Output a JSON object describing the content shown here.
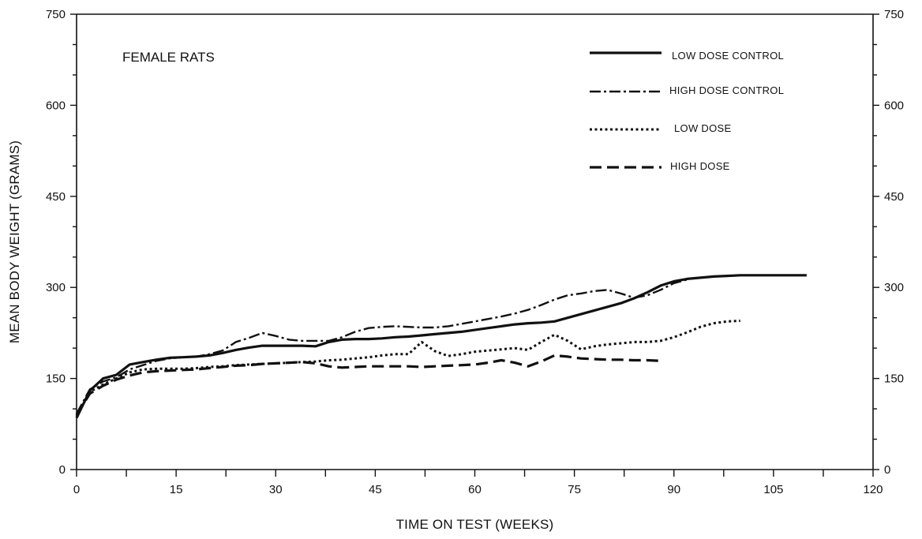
{
  "chart_data": {
    "type": "line",
    "title": "FEMALE RATS",
    "xlabel": "TIME ON TEST (WEEKS)",
    "ylabel": "MEAN BODY WEIGHT (GRAMS)",
    "xlim": [
      0,
      120
    ],
    "ylim": [
      0,
      750
    ],
    "x_ticks": [
      0,
      15,
      30,
      45,
      60,
      75,
      90,
      105,
      120
    ],
    "y_ticks": [
      0,
      150,
      300,
      450,
      600,
      750
    ],
    "grid": false,
    "legend_position": "top-right",
    "series": [
      {
        "name": "LOW DOSE CONTROL",
        "style": "solid",
        "x": [
          0,
          2,
          4,
          6,
          8,
          10,
          12,
          14,
          16,
          18,
          20,
          22,
          24,
          26,
          28,
          30,
          32,
          34,
          36,
          38,
          40,
          42,
          44,
          46,
          48,
          50,
          52,
          54,
          56,
          58,
          60,
          62,
          64,
          66,
          68,
          70,
          72,
          74,
          76,
          78,
          80,
          82,
          84,
          86,
          88,
          90,
          92,
          94,
          96,
          98,
          100,
          102,
          104,
          106,
          108,
          110
        ],
        "y": [
          85,
          130,
          150,
          156,
          173,
          177,
          181,
          184,
          185,
          186,
          188,
          192,
          197,
          201,
          204,
          204,
          204,
          204,
          203,
          210,
          214,
          215,
          215,
          216,
          218,
          219,
          221,
          223,
          225,
          227,
          230,
          233,
          236,
          239,
          241,
          242,
          244,
          250,
          256,
          262,
          268,
          274,
          282,
          292,
          303,
          310,
          314,
          316,
          318,
          319,
          320,
          320,
          320,
          320,
          320,
          320
        ]
      },
      {
        "name": "HIGH DOSE CONTROL",
        "style": "dash-dot",
        "x": [
          0,
          2,
          4,
          6,
          8,
          10,
          12,
          14,
          16,
          18,
          20,
          22,
          24,
          26,
          28,
          30,
          32,
          34,
          36,
          38,
          40,
          42,
          44,
          46,
          48,
          50,
          52,
          54,
          56,
          58,
          60,
          62,
          64,
          66,
          68,
          70,
          72,
          74,
          76,
          78,
          80,
          82,
          84,
          86,
          88,
          90,
          92
        ],
        "y": [
          92,
          132,
          145,
          152,
          165,
          172,
          179,
          183,
          185,
          186,
          190,
          196,
          210,
          217,
          225,
          220,
          214,
          212,
          212,
          212,
          218,
          227,
          233,
          235,
          236,
          235,
          234,
          234,
          236,
          240,
          244,
          248,
          252,
          257,
          263,
          271,
          280,
          287,
          290,
          294,
          296,
          290,
          283,
          287,
          296,
          307,
          313
        ]
      },
      {
        "name": "LOW DOSE",
        "style": "dotted",
        "x": [
          0,
          2,
          4,
          6,
          8,
          10,
          12,
          14,
          16,
          18,
          20,
          22,
          24,
          26,
          28,
          30,
          32,
          34,
          36,
          38,
          40,
          42,
          44,
          46,
          48,
          50,
          52,
          54,
          56,
          58,
          60,
          62,
          64,
          66,
          68,
          70,
          72,
          74,
          76,
          78,
          80,
          82,
          84,
          86,
          88,
          90,
          92,
          94,
          96,
          98,
          100
        ],
        "y": [
          88,
          128,
          140,
          150,
          160,
          165,
          166,
          166,
          166,
          167,
          169,
          170,
          172,
          173,
          174,
          175,
          176,
          177,
          178,
          180,
          181,
          183,
          185,
          188,
          190,
          190,
          210,
          195,
          187,
          190,
          194,
          196,
          198,
          200,
          197,
          210,
          222,
          212,
          198,
          203,
          206,
          208,
          210,
          210,
          212,
          218,
          226,
          235,
          241,
          244,
          245
        ]
      },
      {
        "name": "HIGH DOSE",
        "style": "dashed",
        "x": [
          0,
          2,
          4,
          6,
          8,
          10,
          12,
          14,
          16,
          18,
          20,
          22,
          24,
          26,
          28,
          30,
          32,
          34,
          36,
          38,
          40,
          42,
          44,
          46,
          48,
          50,
          52,
          54,
          56,
          58,
          60,
          62,
          64,
          66,
          68,
          70,
          72,
          74,
          76,
          78,
          80,
          82,
          84,
          86,
          88
        ],
        "y": [
          90,
          125,
          138,
          148,
          155,
          160,
          162,
          163,
          164,
          165,
          167,
          169,
          171,
          172,
          174,
          175,
          176,
          177,
          175,
          170,
          168,
          169,
          170,
          170,
          170,
          170,
          169,
          170,
          171,
          172,
          173,
          176,
          180,
          176,
          170,
          178,
          188,
          186,
          183,
          182,
          181,
          181,
          180,
          180,
          179
        ]
      }
    ]
  }
}
